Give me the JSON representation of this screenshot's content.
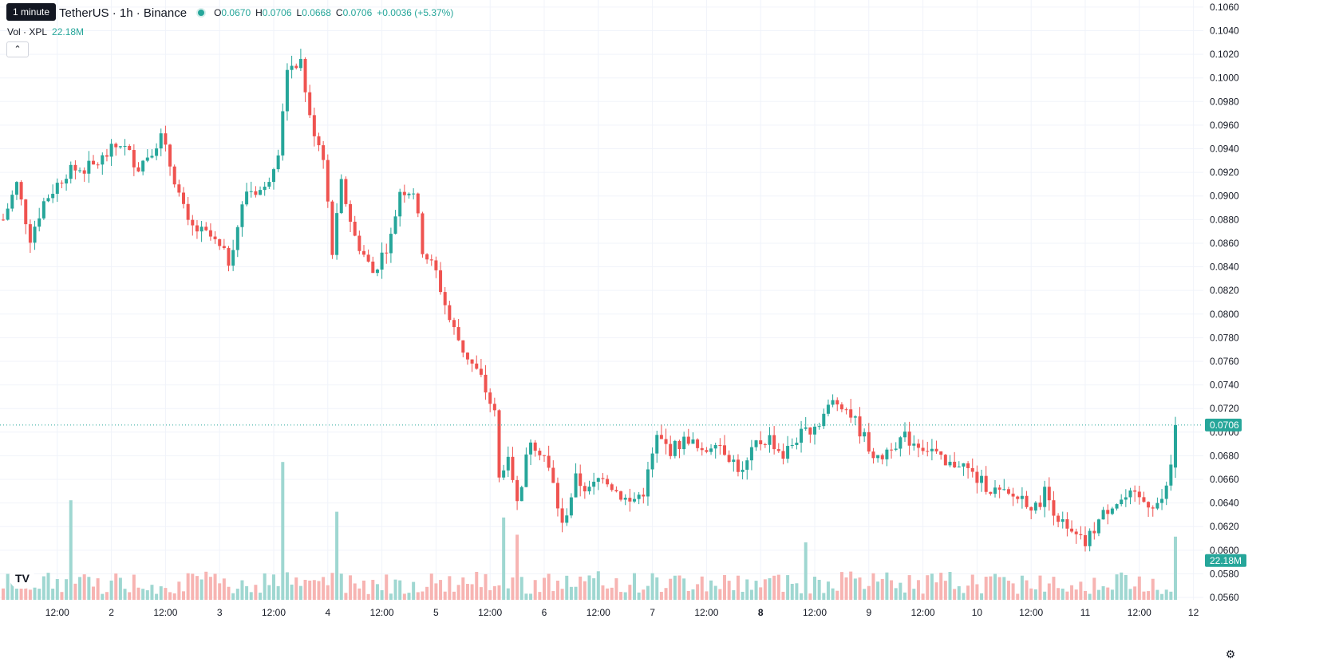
{
  "header": {
    "tooltip": "1 minute",
    "symbol_title": "TetherUS · 1h · Binance",
    "open_label": "O",
    "open": "0.0670",
    "high_label": "H",
    "high": "0.0706",
    "low_label": "L",
    "low": "0.0668",
    "close_label": "C",
    "close": "0.0706",
    "change": "+0.0036 (+5.37%)"
  },
  "volume_legend": {
    "label": "Vol · XPL",
    "value": "22.18M"
  },
  "price_tag": "0.0706",
  "volume_tag": "22.18M",
  "logo_text": "TV",
  "colors": {
    "up": "#26a69a",
    "down": "#ef5350",
    "grid": "#f0f3fa"
  },
  "chart_data": {
    "type": "candlestick",
    "interval": "1h",
    "y_axis": {
      "ylim": [
        0.0558,
        0.1066
      ],
      "ticks": [
        "0.0560",
        "0.0580",
        "0.0600",
        "0.0620",
        "0.0640",
        "0.0660",
        "0.0680",
        "0.0700",
        "0.0720",
        "0.0740",
        "0.0760",
        "0.0780",
        "0.0800",
        "0.0820",
        "0.0840",
        "0.0860",
        "0.0880",
        "0.0900",
        "0.0920",
        "0.0940",
        "0.0960",
        "0.0980",
        "0.1000",
        "0.1020",
        "0.1040",
        "0.1060"
      ]
    },
    "x_axis": {
      "ticks": [
        {
          "label": "12:00",
          "bar": 12
        },
        {
          "label": "2",
          "bar": 24
        },
        {
          "label": "12:00",
          "bar": 36
        },
        {
          "label": "3",
          "bar": 48
        },
        {
          "label": "12:00",
          "bar": 60
        },
        {
          "label": "4",
          "bar": 72
        },
        {
          "label": "12:00",
          "bar": 84
        },
        {
          "label": "5",
          "bar": 96
        },
        {
          "label": "12:00",
          "bar": 108
        },
        {
          "label": "6",
          "bar": 120
        },
        {
          "label": "12:00",
          "bar": 132
        },
        {
          "label": "7",
          "bar": 144
        },
        {
          "label": "12:00",
          "bar": 156
        },
        {
          "label": "8",
          "bar": 168,
          "bold": true
        },
        {
          "label": "12:00",
          "bar": 180
        },
        {
          "label": "9",
          "bar": 192
        },
        {
          "label": "12:00",
          "bar": 204
        },
        {
          "label": "10",
          "bar": 216
        },
        {
          "label": "12:00",
          "bar": 228
        },
        {
          "label": "11",
          "bar": 240
        },
        {
          "label": "12:00",
          "bar": 252
        },
        {
          "label": "12",
          "bar": 264
        }
      ]
    },
    "last_price": 0.0706,
    "close_path": [
      {
        "bar": 0,
        "close": 0.088
      },
      {
        "bar": 3,
        "close": 0.091
      },
      {
        "bar": 6,
        "close": 0.0865
      },
      {
        "bar": 9,
        "close": 0.0895
      },
      {
        "bar": 14,
        "close": 0.092
      },
      {
        "bar": 20,
        "close": 0.0925
      },
      {
        "bar": 26,
        "close": 0.0945
      },
      {
        "bar": 30,
        "close": 0.0925
      },
      {
        "bar": 35,
        "close": 0.095
      },
      {
        "bar": 38,
        "close": 0.0915
      },
      {
        "bar": 41,
        "close": 0.0875
      },
      {
        "bar": 46,
        "close": 0.0865
      },
      {
        "bar": 50,
        "close": 0.0845
      },
      {
        "bar": 54,
        "close": 0.0905
      },
      {
        "bar": 58,
        "close": 0.0905
      },
      {
        "bar": 61,
        "close": 0.094
      },
      {
        "bar": 63,
        "close": 0.101
      },
      {
        "bar": 66,
        "close": 0.1015
      },
      {
        "bar": 68,
        "close": 0.0965
      },
      {
        "bar": 71,
        "close": 0.0935
      },
      {
        "bar": 73,
        "close": 0.0855
      },
      {
        "bar": 75,
        "close": 0.091
      },
      {
        "bar": 78,
        "close": 0.0865
      },
      {
        "bar": 82,
        "close": 0.0835
      },
      {
        "bar": 86,
        "close": 0.0865
      },
      {
        "bar": 88,
        "close": 0.0905
      },
      {
        "bar": 91,
        "close": 0.0905
      },
      {
        "bar": 93,
        "close": 0.0855
      },
      {
        "bar": 96,
        "close": 0.0835
      },
      {
        "bar": 99,
        "close": 0.0795
      },
      {
        "bar": 102,
        "close": 0.077
      },
      {
        "bar": 106,
        "close": 0.0745
      },
      {
        "bar": 109,
        "close": 0.0715
      },
      {
        "bar": 110,
        "close": 0.066
      },
      {
        "bar": 112,
        "close": 0.0685
      },
      {
        "bar": 114,
        "close": 0.064
      },
      {
        "bar": 117,
        "close": 0.0695
      },
      {
        "bar": 120,
        "close": 0.068
      },
      {
        "bar": 122,
        "close": 0.0655
      },
      {
        "bar": 124,
        "close": 0.062
      },
      {
        "bar": 127,
        "close": 0.066
      },
      {
        "bar": 130,
        "close": 0.065
      },
      {
        "bar": 133,
        "close": 0.0665
      },
      {
        "bar": 136,
        "close": 0.065
      },
      {
        "bar": 139,
        "close": 0.064
      },
      {
        "bar": 142,
        "close": 0.065
      },
      {
        "bar": 145,
        "close": 0.0695
      },
      {
        "bar": 148,
        "close": 0.0685
      },
      {
        "bar": 152,
        "close": 0.0695
      },
      {
        "bar": 155,
        "close": 0.068
      },
      {
        "bar": 158,
        "close": 0.0695
      },
      {
        "bar": 161,
        "close": 0.068
      },
      {
        "bar": 164,
        "close": 0.0665
      },
      {
        "bar": 167,
        "close": 0.069
      },
      {
        "bar": 170,
        "close": 0.0695
      },
      {
        "bar": 173,
        "close": 0.068
      },
      {
        "bar": 176,
        "close": 0.0695
      },
      {
        "bar": 180,
        "close": 0.0705
      },
      {
        "bar": 184,
        "close": 0.0725
      },
      {
        "bar": 186,
        "close": 0.0725
      },
      {
        "bar": 188,
        "close": 0.0715
      },
      {
        "bar": 191,
        "close": 0.0695
      },
      {
        "bar": 194,
        "close": 0.0675
      },
      {
        "bar": 197,
        "close": 0.069
      },
      {
        "bar": 200,
        "close": 0.0695
      },
      {
        "bar": 203,
        "close": 0.069
      },
      {
        "bar": 206,
        "close": 0.0685
      },
      {
        "bar": 209,
        "close": 0.067
      },
      {
        "bar": 212,
        "close": 0.0675
      },
      {
        "bar": 216,
        "close": 0.066
      },
      {
        "bar": 220,
        "close": 0.065
      },
      {
        "bar": 223,
        "close": 0.0645
      },
      {
        "bar": 226,
        "close": 0.0645
      },
      {
        "bar": 229,
        "close": 0.0635
      },
      {
        "bar": 231,
        "close": 0.065
      },
      {
        "bar": 233,
        "close": 0.0635
      },
      {
        "bar": 236,
        "close": 0.0615
      },
      {
        "bar": 240,
        "close": 0.0605
      },
      {
        "bar": 243,
        "close": 0.0625
      },
      {
        "bar": 246,
        "close": 0.064
      },
      {
        "bar": 250,
        "close": 0.0645
      },
      {
        "bar": 254,
        "close": 0.064
      },
      {
        "bar": 257,
        "close": 0.064
      },
      {
        "bar": 258,
        "close": 0.0655
      },
      {
        "bar": 259,
        "close": 0.067
      },
      {
        "bar": 260,
        "close": 0.0706
      }
    ],
    "volume_peaks": [
      {
        "bar": 15,
        "value": 0.52
      },
      {
        "bar": 62,
        "value": 0.72
      },
      {
        "bar": 74,
        "value": 0.46
      },
      {
        "bar": 111,
        "value": 0.43
      },
      {
        "bar": 114,
        "value": 0.34
      },
      {
        "bar": 178,
        "value": 0.3
      },
      {
        "bar": 260,
        "value": 0.33
      }
    ],
    "volume_max_label": "22.18M"
  }
}
